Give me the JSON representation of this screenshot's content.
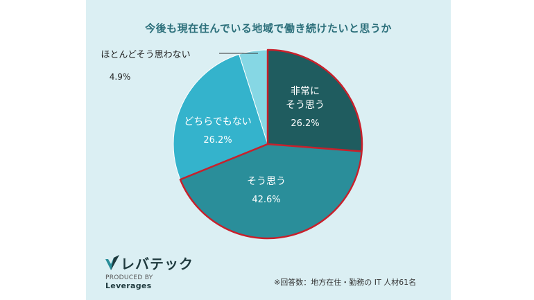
{
  "title": "今後も現在住んでいる地域で働き続けたいと思うか",
  "chart_data": {
    "type": "pie",
    "title": "今後も現在住んでいる地域で働き続けたいと思うか",
    "slices": [
      {
        "label": "非常に\nそう思う",
        "value": 26.2,
        "value_label": "26.2%",
        "color": "#1f5c5f"
      },
      {
        "label": "そう思う",
        "value": 42.6,
        "value_label": "42.6%",
        "color": "#2a8e9a"
      },
      {
        "label": "どちらでもない",
        "value": 26.2,
        "value_label": "26.2%",
        "color": "#34b3cc"
      },
      {
        "label": "ほとんどそう思わない",
        "value": 4.9,
        "value_label": "4.9%",
        "color": "#86d7e4"
      }
    ],
    "highlight_border": "#c8202b"
  },
  "brand": {
    "name": "レバテック",
    "produced_by": "PRODUCED BY",
    "company": "Leverages"
  },
  "footnote": "※回答数：地方在住・勤務の IT 人材61名"
}
